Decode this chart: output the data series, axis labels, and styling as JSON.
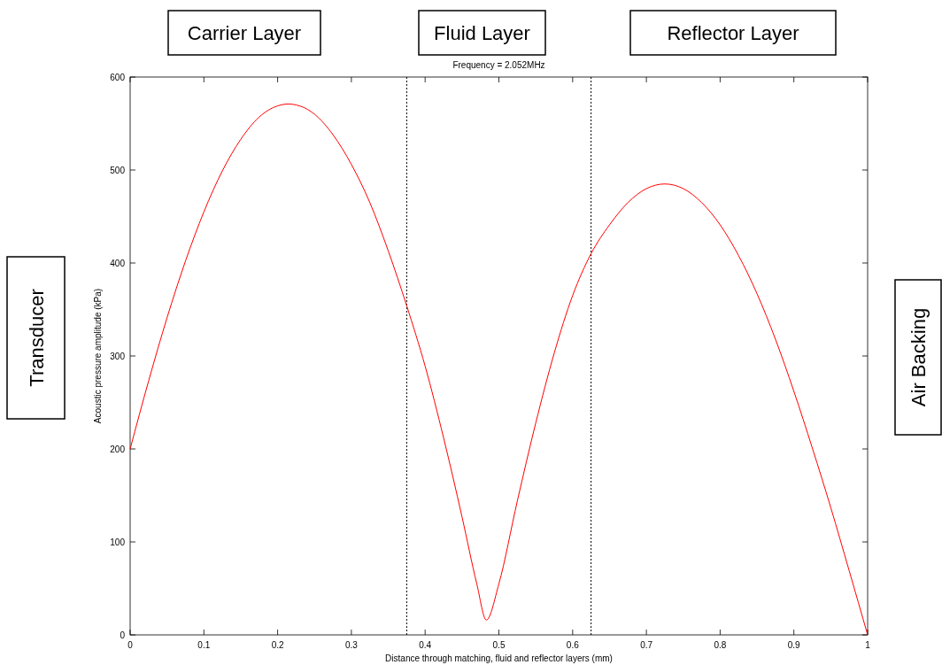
{
  "chart_data": {
    "type": "line",
    "title": "Frequency = 2.052MHz",
    "xlabel": "Distance through matching, fluid and reflector layers (mm)",
    "ylabel": "Acoustic pressure amplitude (kPa)",
    "x": [
      0,
      0.025,
      0.05,
      0.075,
      0.1,
      0.125,
      0.15,
      0.175,
      0.2,
      0.215,
      0.225,
      0.25,
      0.275,
      0.3,
      0.325,
      0.35,
      0.375,
      0.4,
      0.425,
      0.45,
      0.47,
      0.483,
      0.5,
      0.525,
      0.55,
      0.575,
      0.6,
      0.625,
      0.65,
      0.675,
      0.7,
      0.725,
      0.75,
      0.775,
      0.8,
      0.825,
      0.85,
      0.875,
      0.9,
      0.925,
      0.95,
      0.975,
      1
    ],
    "series": [
      {
        "color": "#ff0000",
        "values": [
          200,
          273,
          341,
          402,
          455,
          499,
          533,
          557,
          569,
          571,
          570,
          560,
          538,
          506,
          465,
          413,
          354,
          289,
          212,
          127,
          55,
          16,
          55,
          144,
          228,
          303,
          365,
          410,
          441,
          465,
          480,
          485,
          480,
          465,
          441,
          408,
          367,
          318,
          262,
          201,
          137,
          69,
          0
        ]
      }
    ],
    "xlim": [
      0,
      1
    ],
    "ylim": [
      0,
      600
    ],
    "xticks": [
      0,
      0.1,
      0.2,
      0.3,
      0.4,
      0.5,
      0.6,
      0.7,
      0.8,
      0.9,
      1
    ],
    "yticks": [
      0,
      100,
      200,
      300,
      400,
      500,
      600
    ],
    "grid": false,
    "marker": "none",
    "line_style": "solid",
    "ref_lines": [
      {
        "axis": "x",
        "value": 0.375,
        "color": "#000000",
        "line_style": "dotted"
      },
      {
        "axis": "x",
        "value": 0.625,
        "color": "#000000",
        "line_style": "dotted"
      }
    ],
    "annotations": [
      "Carrier Layer",
      "Fluid Layer",
      "Reflector Layer",
      "Transducer",
      "Air Backing"
    ]
  }
}
